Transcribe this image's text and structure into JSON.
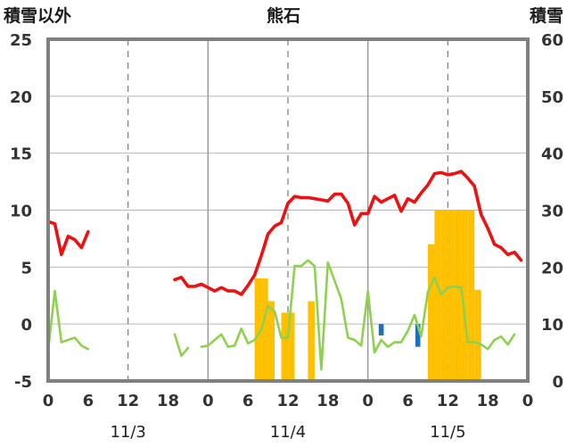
{
  "chart_data": {
    "type": "line",
    "title": "熊石",
    "left_axis_label": "積雪以外",
    "right_axis_label": "積雪",
    "left_ylim": [
      -5,
      25
    ],
    "left_ticks": [
      25,
      20,
      15,
      10,
      5,
      0,
      -5
    ],
    "right_ylim": [
      0,
      60
    ],
    "right_ticks": [
      60,
      50,
      40,
      30,
      20,
      10,
      0
    ],
    "x_range_hours": [
      0,
      72
    ],
    "x_tick_labels": [
      "0",
      "6",
      "12",
      "18",
      "0",
      "6",
      "12",
      "18",
      "0",
      "6",
      "12",
      "18",
      "0"
    ],
    "date_labels": [
      "11/3",
      "11/4",
      "11/5"
    ],
    "grid": true,
    "colors": {
      "temperature": "#ee1111",
      "precip_line": "#8fd14f",
      "snow_bars": "#ffc000",
      "negative_bars": "#1f6fbf",
      "baseline": "#7030a0",
      "frame": "#808080"
    },
    "series": [
      {
        "key": "temperature",
        "segments": [
          [
            [
              0,
              9.0
            ],
            [
              1,
              8.8
            ],
            [
              2,
              6.1
            ],
            [
              3,
              7.7
            ],
            [
              4,
              7.4
            ],
            [
              5,
              6.7
            ],
            [
              6,
              8.1
            ]
          ],
          [
            [
              19,
              3.9
            ],
            [
              20,
              4.1
            ],
            [
              21,
              3.3
            ],
            [
              22,
              3.3
            ],
            [
              23,
              3.5
            ],
            [
              24,
              3.2
            ],
            [
              25,
              2.9
            ],
            [
              26,
              3.2
            ],
            [
              27,
              2.9
            ],
            [
              28,
              2.9
            ],
            [
              29,
              2.6
            ],
            [
              30,
              3.4
            ],
            [
              31,
              4.3
            ],
            [
              32,
              6.0
            ],
            [
              33,
              7.9
            ],
            [
              34,
              8.6
            ],
            [
              35,
              8.9
            ],
            [
              36,
              10.6
            ],
            [
              37,
              11.2
            ],
            [
              38,
              11.1
            ],
            [
              39,
              11.1
            ],
            [
              40,
              11.0
            ],
            [
              41,
              10.9
            ],
            [
              42,
              10.8
            ],
            [
              43,
              11.4
            ],
            [
              44,
              11.4
            ],
            [
              45,
              10.6
            ],
            [
              46,
              8.7
            ],
            [
              47,
              9.7
            ],
            [
              48,
              9.7
            ],
            [
              49,
              11.2
            ],
            [
              50,
              10.7
            ],
            [
              51,
              11.0
            ],
            [
              52,
              11.3
            ],
            [
              53,
              9.9
            ],
            [
              54,
              11.0
            ],
            [
              55,
              10.7
            ],
            [
              56,
              11.5
            ],
            [
              57,
              12.2
            ],
            [
              58,
              13.2
            ],
            [
              59,
              13.3
            ],
            [
              60,
              13.1
            ],
            [
              61,
              13.2
            ],
            [
              62,
              13.4
            ],
            [
              63,
              12.8
            ],
            [
              64,
              12.1
            ],
            [
              65,
              9.6
            ],
            [
              66,
              8.4
            ],
            [
              67,
              7.0
            ],
            [
              68,
              6.7
            ],
            [
              69,
              6.1
            ],
            [
              70,
              6.3
            ],
            [
              71,
              5.6
            ]
          ]
        ]
      },
      {
        "key": "precip_line",
        "segments": [
          [
            [
              0,
              -2.3
            ],
            [
              1,
              2.9
            ],
            [
              2,
              -1.6
            ],
            [
              3,
              -1.4
            ],
            [
              4,
              -1.2
            ],
            [
              5,
              -1.9
            ],
            [
              6,
              -2.2
            ]
          ],
          [
            [
              19,
              -0.9
            ],
            [
              20,
              -2.8
            ],
            [
              21,
              -2.1
            ]
          ],
          [
            [
              23,
              -2.0
            ],
            [
              24,
              -1.9
            ],
            [
              25,
              -1.4
            ],
            [
              26,
              -0.9
            ],
            [
              27,
              -2.0
            ],
            [
              28,
              -1.9
            ],
            [
              29,
              -0.4
            ],
            [
              30,
              -1.7
            ],
            [
              31,
              -1.4
            ],
            [
              32,
              -0.5
            ],
            [
              33,
              1.6
            ],
            [
              34,
              1.1
            ],
            [
              35,
              -1.2
            ],
            [
              36,
              -1.2
            ],
            [
              37,
              5.1
            ],
            [
              38,
              5.1
            ],
            [
              39,
              5.6
            ],
            [
              40,
              5.1
            ],
            [
              41,
              -4.0
            ],
            [
              42,
              5.4
            ],
            [
              43,
              3.8
            ],
            [
              44,
              2.2
            ],
            [
              45,
              -1.2
            ],
            [
              46,
              -1.4
            ],
            [
              47,
              -1.9
            ],
            [
              48,
              2.9
            ],
            [
              49,
              -2.5
            ],
            [
              50,
              -1.4
            ],
            [
              51,
              -2.0
            ],
            [
              52,
              -1.6
            ],
            [
              53,
              -1.6
            ],
            [
              54,
              -0.6
            ],
            [
              55,
              0.8
            ],
            [
              56,
              -1.1
            ],
            [
              57,
              2.8
            ],
            [
              58,
              4.1
            ],
            [
              59,
              2.6
            ],
            [
              60,
              3.2
            ],
            [
              61,
              3.3
            ],
            [
              62,
              3.2
            ],
            [
              63,
              -1.6
            ],
            [
              64,
              -1.6
            ],
            [
              65,
              -1.8
            ],
            [
              66,
              -2.2
            ],
            [
              67,
              -1.4
            ],
            [
              68,
              -1.1
            ],
            [
              69,
              -1.8
            ],
            [
              70,
              -0.9
            ]
          ]
        ]
      },
      {
        "key": "snow_bars",
        "axis": "right",
        "points": [
          [
            31.5,
            18.0
          ],
          [
            32.5,
            18.0
          ],
          [
            33.5,
            14.0
          ],
          [
            35.5,
            12.0
          ],
          [
            36.5,
            12.0
          ],
          [
            39.5,
            14.0
          ],
          [
            57.5,
            24.0
          ],
          [
            58.5,
            30.0
          ],
          [
            59.5,
            30.0
          ],
          [
            60.5,
            30.0
          ],
          [
            61.5,
            30.0
          ],
          [
            62.5,
            30.0
          ],
          [
            63.5,
            30.0
          ],
          [
            64.5,
            16.0
          ]
        ]
      },
      {
        "key": "negative_bars",
        "points": [
          [
            50.0,
            -1.0
          ],
          [
            55.5,
            -2.0
          ]
        ]
      },
      {
        "key": "baseline",
        "segments": [
          [
            [
              0,
              -5.0
            ],
            [
              6,
              -5.0
            ]
          ],
          [
            [
              19,
              -5.0
            ],
            [
              72,
              -5.0
            ]
          ]
        ]
      }
    ]
  }
}
